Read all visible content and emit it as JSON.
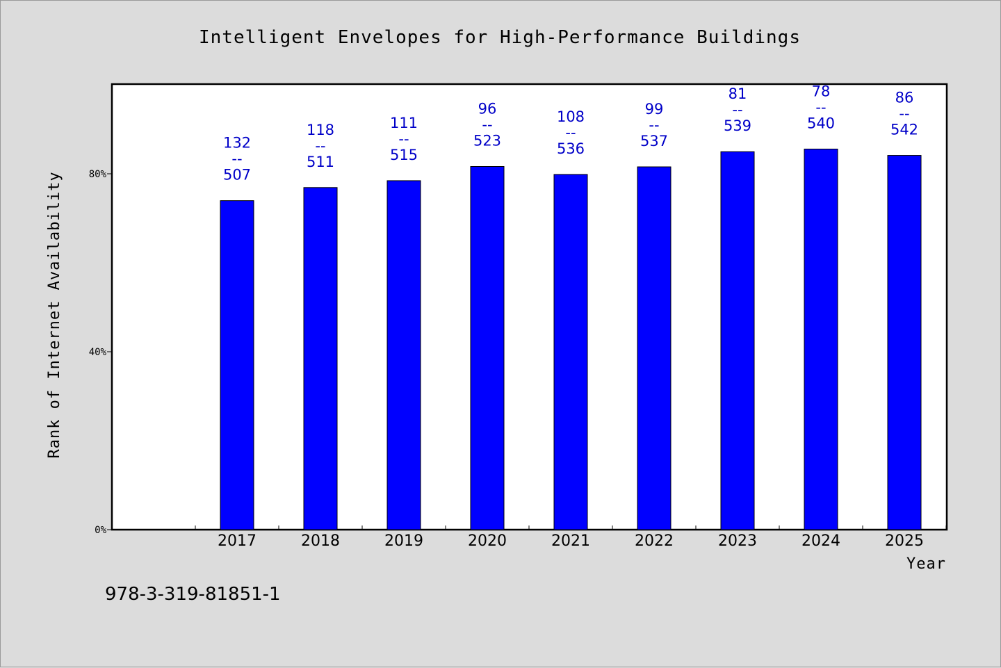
{
  "chart_data": {
    "type": "bar",
    "title": "Intelligent Envelopes for High-Performance Buildings",
    "xlabel": "Year",
    "ylabel": "Rank of Internet Availability",
    "categories": [
      "2017",
      "2018",
      "2019",
      "2020",
      "2021",
      "2022",
      "2023",
      "2024",
      "2025"
    ],
    "values": [
      73.96,
      76.91,
      78.45,
      81.64,
      79.85,
      81.56,
      84.97,
      85.56,
      84.13
    ],
    "ranks": [
      132,
      118,
      111,
      96,
      108,
      99,
      81,
      78,
      86
    ],
    "totals": [
      507,
      511,
      515,
      523,
      536,
      537,
      539,
      540,
      542
    ],
    "label_separator": "--",
    "ylim": [
      0,
      100
    ],
    "yticks": [
      0,
      40,
      80
    ],
    "ytick_labels": [
      "0%",
      "40%",
      "80%"
    ],
    "bar_color": "#0000ff",
    "label_color": "#0000c8",
    "grid": false,
    "legend": "none"
  },
  "footer": {
    "isbn": "978-3-319-81851-1"
  }
}
